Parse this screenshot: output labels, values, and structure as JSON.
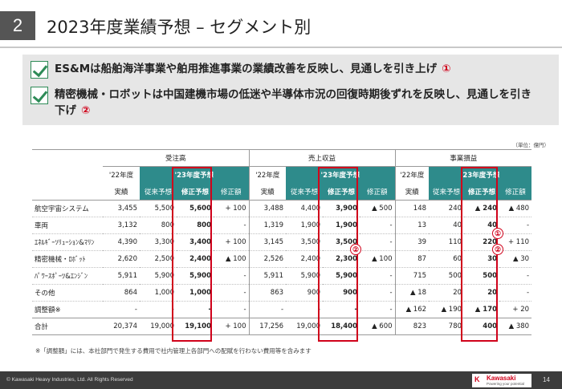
{
  "header": {
    "section_number": "2",
    "title": "2023年度業績予想 – セグメント別"
  },
  "bullets": [
    {
      "text": "ES&Mは船舶海洋事業や舶用推進事業の業績改善を反映し、見通しを引き上げ",
      "mark": "①"
    },
    {
      "text": "精密機械・ロボットは中国建機市場の低迷や半導体市況の回復時期後ずれを反映し、見通しを引き下げ",
      "mark": "②"
    }
  ],
  "table": {
    "unit": "（単位：億円）",
    "groups": [
      "受注高",
      "売上収益",
      "事業損益"
    ],
    "prev_year": "'22年度",
    "forecast_year": "'23年度予想",
    "subheaders": [
      "実績",
      "従来予想",
      "修正予想",
      "修正額"
    ],
    "rows": [
      {
        "label": "航空宇宙システム",
        "vals": [
          "3,455",
          "5,500",
          "5,600",
          "+ 100",
          "3,488",
          "4,400",
          "3,900",
          "▲ 500",
          "148",
          "240",
          "▲ 240",
          "▲ 480"
        ]
      },
      {
        "label": "車両",
        "vals": [
          "3,132",
          "800",
          "800",
          "-",
          "1,319",
          "1,900",
          "1,900",
          "-",
          "13",
          "40",
          "40",
          "-"
        ]
      },
      {
        "label": "ｴﾈﾙｷﾞｰｿﾘｭｰｼｮﾝ&ﾏﾘﾝ",
        "vals": [
          "4,390",
          "3,300",
          "3,400",
          "+ 100",
          "3,145",
          "3,500",
          "3,500",
          "-",
          "39",
          "110",
          "220",
          "+ 110"
        ]
      },
      {
        "label": "精密機械・ﾛﾎﾞｯﾄ",
        "vals": [
          "2,620",
          "2,500",
          "2,400",
          "▲ 100",
          "2,526",
          "2,400",
          "2,300",
          "▲ 100",
          "87",
          "60",
          "30",
          "▲ 30"
        ]
      },
      {
        "label": "ﾊﾟﾜｰｽﾎﾟｰﾂ&ｴﾝｼﾞﾝ",
        "vals": [
          "5,911",
          "5,900",
          "5,900",
          "-",
          "5,911",
          "5,900",
          "5,900",
          "-",
          "715",
          "500",
          "500",
          "-"
        ]
      },
      {
        "label": "その他",
        "vals": [
          "864",
          "1,000",
          "1,000",
          "-",
          "863",
          "900",
          "900",
          "-",
          "▲ 18",
          "20",
          "20",
          "-"
        ]
      },
      {
        "label": "調整額※",
        "vals": [
          "-",
          "-",
          "-",
          "-",
          "-",
          "-",
          "-",
          "-",
          "▲ 162",
          "▲ 190",
          "▲ 170",
          "+ 20"
        ]
      },
      {
        "label": "合計",
        "vals": [
          "20,374",
          "19,000",
          "19,100",
          "+ 100",
          "17,256",
          "19,000",
          "18,400",
          "▲ 600",
          "823",
          "780",
          "400",
          "▲ 380"
        ]
      }
    ],
    "marks": {
      "one": "①",
      "two": "②"
    }
  },
  "note": "※「調整額」には、本社部門で発生する費用で社内管理上各部門への配賦を行わない費用等を含みます",
  "footer": {
    "copyright": "© Kawasaki Heavy Industries, Ltd. All Rights Reserved",
    "logo_mark": "K",
    "logo_text": "Kawasaki",
    "logo_tagline": "Powering your potential",
    "page": "14"
  },
  "colors": {
    "accent": "#2e8b8b",
    "highlight": "#d0021b",
    "check": "#2e8b57"
  }
}
